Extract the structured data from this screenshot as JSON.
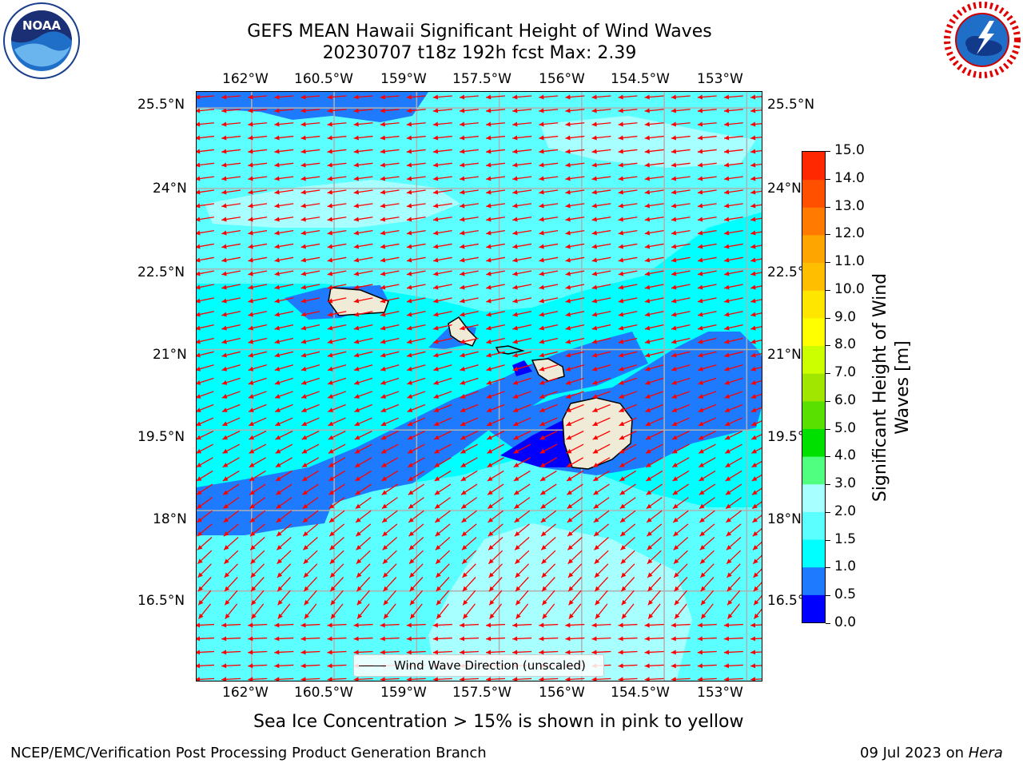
{
  "title": {
    "line1": "GEFS MEAN Hawaii Significant Height of Wind Waves",
    "line2": "20230707 t18z 192h fcst   Max: 2.39"
  },
  "logos": {
    "left": {
      "text": "NOAA",
      "ring_text": "NATIONAL OCEANIC AND ATMOSPHERIC ADMINISTRATION · U.S. DEPARTMENT OF COMMERCE"
    },
    "right": {
      "ring_text": "NATIONAL WEATHER SERVICE"
    }
  },
  "map": {
    "lon_ticks": [
      "162°W",
      "160.5°W",
      "159°W",
      "157.5°W",
      "156°W",
      "154.5°W",
      "153°W"
    ],
    "lat_ticks": [
      "25.5°N",
      "24°N",
      "22.5°N",
      "21°N",
      "19.5°N",
      "18°N",
      "16.5°N"
    ],
    "lon_range": [
      -163,
      -152.7
    ],
    "lat_range": [
      14.8,
      25.8
    ],
    "legend_label": "Wind Wave Direction (unscaled)",
    "colors": {
      "land": "#efebd6",
      "coast": "#000000",
      "arrows": "#ff0000",
      "grid": "#b0b0b0"
    }
  },
  "colorbar": {
    "label": "Significant Height of Wind Waves [m]",
    "label_lines": [
      "Significant Height of Wind",
      "Waves [m]"
    ],
    "ticks": [
      "0.0",
      "0.5",
      "1.0",
      "1.5",
      "2.0",
      "3.0",
      "4.0",
      "5.0",
      "6.0",
      "7.0",
      "8.0",
      "9.0",
      "10.0",
      "11.0",
      "12.0",
      "13.0",
      "14.0",
      "15.0"
    ],
    "colors": [
      "#0000ff",
      "#1e7bff",
      "#00ffff",
      "#5cffff",
      "#a8ffff",
      "#50ff80",
      "#00e000",
      "#5ae000",
      "#a0e600",
      "#ccff00",
      "#ffff00",
      "#ffe600",
      "#ffbe00",
      "#ffa500",
      "#ff7a00",
      "#ff5000",
      "#ff2800",
      "#ff0000"
    ]
  },
  "footer": {
    "note": "Sea Ice Concentration > 15% is shown in pink to yellow",
    "left": "NCEP/EMC/Verification Post Processing Product Generation Branch",
    "right_date": "09 Jul 2023 on ",
    "right_host": "Hera"
  }
}
